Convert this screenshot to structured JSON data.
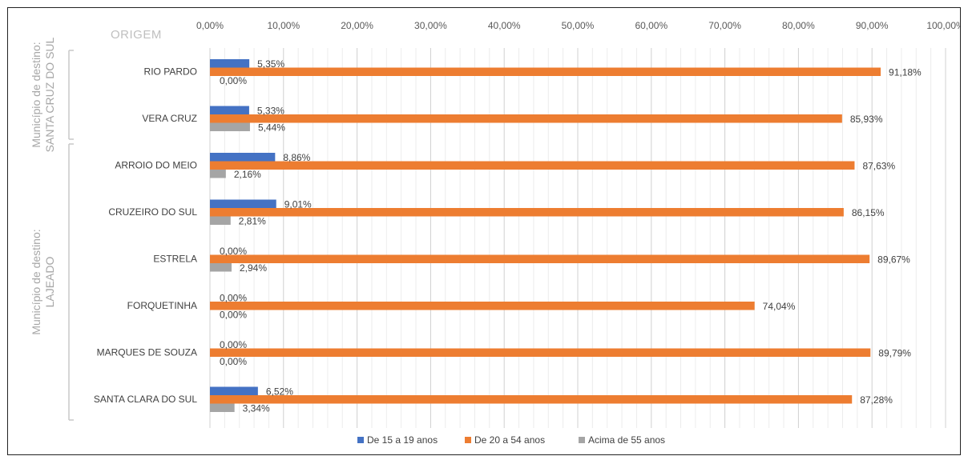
{
  "chart_data": {
    "type": "bar",
    "orientation": "horizontal",
    "origin_label": "ORIGEM",
    "x_ticks": [
      "0,00%",
      "10,00%",
      "20,00%",
      "30,00%",
      "40,00%",
      "50,00%",
      "60,00%",
      "70,00%",
      "80,00%",
      "90,00%",
      "100,00%"
    ],
    "xlim": [
      0,
      100
    ],
    "grid": true,
    "legend_position": "bottom",
    "categories": [
      "RIO PARDO",
      "VERA CRUZ",
      "ARROIO DO MEIO",
      "CRUZEIRO DO SUL",
      "ESTRELA",
      "FORQUETINHA",
      "MARQUES DE SOUZA",
      "SANTA CLARA DO SUL"
    ],
    "groups": [
      {
        "label_line1": "Município de destino:",
        "label_line2": "SANTA CRUZ DO SUL",
        "categories": [
          "RIO PARDO",
          "VERA CRUZ"
        ]
      },
      {
        "label_line1": "Município de destino:",
        "label_line2": "LAJEADO",
        "categories": [
          "ARROIO DO MEIO",
          "CRUZEIRO DO SUL",
          "ESTRELA",
          "FORQUETINHA",
          "MARQUES DE SOUZA",
          "SANTA CLARA DO SUL"
        ]
      }
    ],
    "series": [
      {
        "name": "De 15 a 19 anos",
        "color": "#4472c4",
        "values": [
          5.35,
          5.33,
          8.86,
          9.01,
          0.0,
          0.0,
          0.0,
          6.52
        ],
        "labels": [
          "5,35%",
          "5,33%",
          "8,86%",
          "9,01%",
          "0,00%",
          "0,00%",
          "0,00%",
          "6,52%"
        ]
      },
      {
        "name": "De 20 a 54 anos",
        "color": "#ed7d31",
        "values": [
          91.18,
          85.93,
          87.63,
          86.15,
          89.67,
          74.04,
          89.79,
          87.28
        ],
        "labels": [
          "91,18%",
          "85,93%",
          "87,63%",
          "86,15%",
          "89,67%",
          "74,04%",
          "89,79%",
          "87,28%"
        ]
      },
      {
        "name": "Acima de 55 anos",
        "color": "#a5a5a5",
        "values": [
          0.0,
          5.44,
          2.16,
          2.81,
          2.94,
          0.0,
          0.0,
          3.34
        ],
        "labels": [
          "0,00%",
          "5,44%",
          "2,16%",
          "2,81%",
          "2,94%",
          "0,00%",
          "0,00%",
          "3,34%"
        ]
      }
    ]
  }
}
